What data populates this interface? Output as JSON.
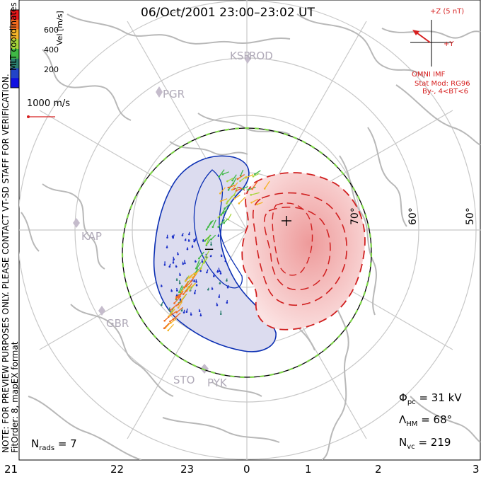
{
  "header": {
    "title": "06/Oct/2001  23:00–23:02  UT"
  },
  "colorbar": {
    "label": "Vel [m/s]",
    "ticks": [
      "600",
      "400",
      "200"
    ],
    "colors": [
      "#e8171a",
      "#f06a1e",
      "#f4b429",
      "#a6d63a",
      "#3fb845",
      "#2b7e6e",
      "#2244c8",
      "#1010e0"
    ]
  },
  "reference_vector": {
    "label": "1000 m/s"
  },
  "imf": {
    "bz_label": "+Z (5 nT)",
    "by_label": "+Y",
    "source": "OMNI IMF",
    "model": "Stat Mod: RG96",
    "condition": "By-, 4<BT<6"
  },
  "side_notes": {
    "line1": "NOTE: FOR PREVIEW PURPOSES ONLY. PLEASE CONTACT VT-SD STAFF FOR VERIFICATION.",
    "line2": "FitOrder: 8,  mapEX format",
    "coords": "MLT coordinates"
  },
  "latitude_labels": [
    "70°",
    "60°",
    "50°"
  ],
  "stations": [
    "KSR",
    "ROD",
    "PGR",
    "KAP",
    "GBR",
    "STO",
    "PYK"
  ],
  "mlt_labels": [
    "21",
    "22",
    "23",
    "0",
    "1",
    "2",
    "3"
  ],
  "stats": {
    "phi_pc_label": "Φ",
    "phi_pc_sub": "pc",
    "phi_pc_value": "=  31 kV",
    "lambda_label": "Λ",
    "lambda_sub": "HM",
    "lambda_value": "=  68°",
    "nvc_label": "N",
    "nvc_sub": "vc",
    "nvc_value": "=  219",
    "nrads_label": "N",
    "nrads_sub": "rads",
    "nrads_value": "=  7"
  },
  "colors": {
    "negative_cell": "#0b2fb3",
    "negative_fill": "#dcdcef",
    "positive_cell": "#d01f1f",
    "positive_fill": "#f6c8c8",
    "coastline": "#b8b8b8",
    "grid": "#c8c8c8",
    "boundary_green": "#7dd448"
  }
}
